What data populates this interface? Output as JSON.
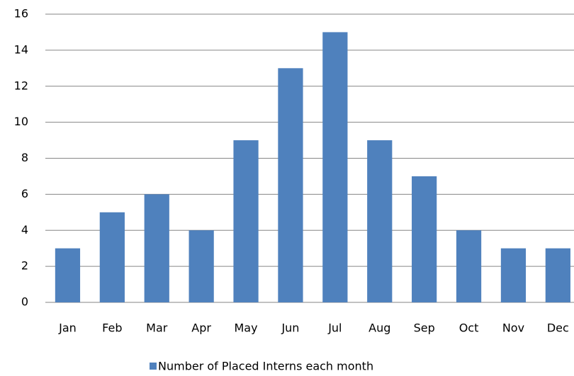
{
  "chart_data": {
    "type": "bar",
    "categories": [
      "Jan",
      "Feb",
      "Mar",
      "Apr",
      "May",
      "Jun",
      "Jul",
      "Aug",
      "Sep",
      "Oct",
      "Nov",
      "Dec"
    ],
    "series": [
      {
        "name": "Number of Placed Interns each month",
        "color": "#4f81bd",
        "values": [
          3,
          5,
          6,
          4,
          9,
          13,
          15,
          9,
          7,
          4,
          3,
          3
        ]
      }
    ],
    "ylim": [
      0,
      16
    ],
    "yticks": [
      0,
      2,
      4,
      6,
      8,
      10,
      12,
      14,
      16
    ],
    "grid": true,
    "legend": "bottom"
  }
}
